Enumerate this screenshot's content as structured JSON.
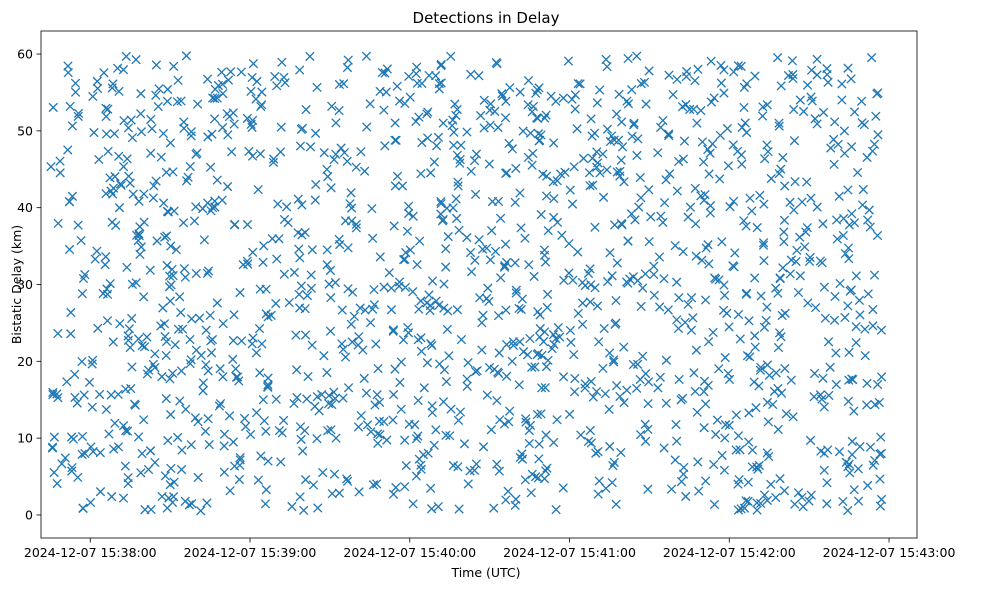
{
  "chart_data": {
    "type": "scatter",
    "title": "Detections in Delay",
    "xlabel": "Time (UTC)",
    "ylabel": "Bistatic Delay (km)",
    "marker": "x",
    "color": "#1f77b4",
    "x_unit": "seconds since 2024-12-07 15:38:00 UTC",
    "xlim": [
      -18.5,
      310.5
    ],
    "ylim": [
      -3,
      63
    ],
    "x_ticks": [
      0,
      60,
      120,
      180,
      240,
      300
    ],
    "x_tick_labels": [
      "2024-12-07 15:38:00",
      "2024-12-07 15:39:00",
      "2024-12-07 15:40:00",
      "2024-12-07 15:41:00",
      "2024-12-07 15:42:00",
      "2024-12-07 15:43:00"
    ],
    "y_ticks": [
      0,
      10,
      20,
      30,
      40,
      50,
      60
    ],
    "y_tick_labels": [
      "0",
      "10",
      "20",
      "30",
      "40",
      "50",
      "60"
    ],
    "grid": false,
    "legend": "none",
    "point_count": 1500,
    "x_range_of_points": [
      -15.3,
      297.5
    ],
    "y_range_of_points": [
      0.5,
      59.8
    ],
    "x": [],
    "y": []
  }
}
